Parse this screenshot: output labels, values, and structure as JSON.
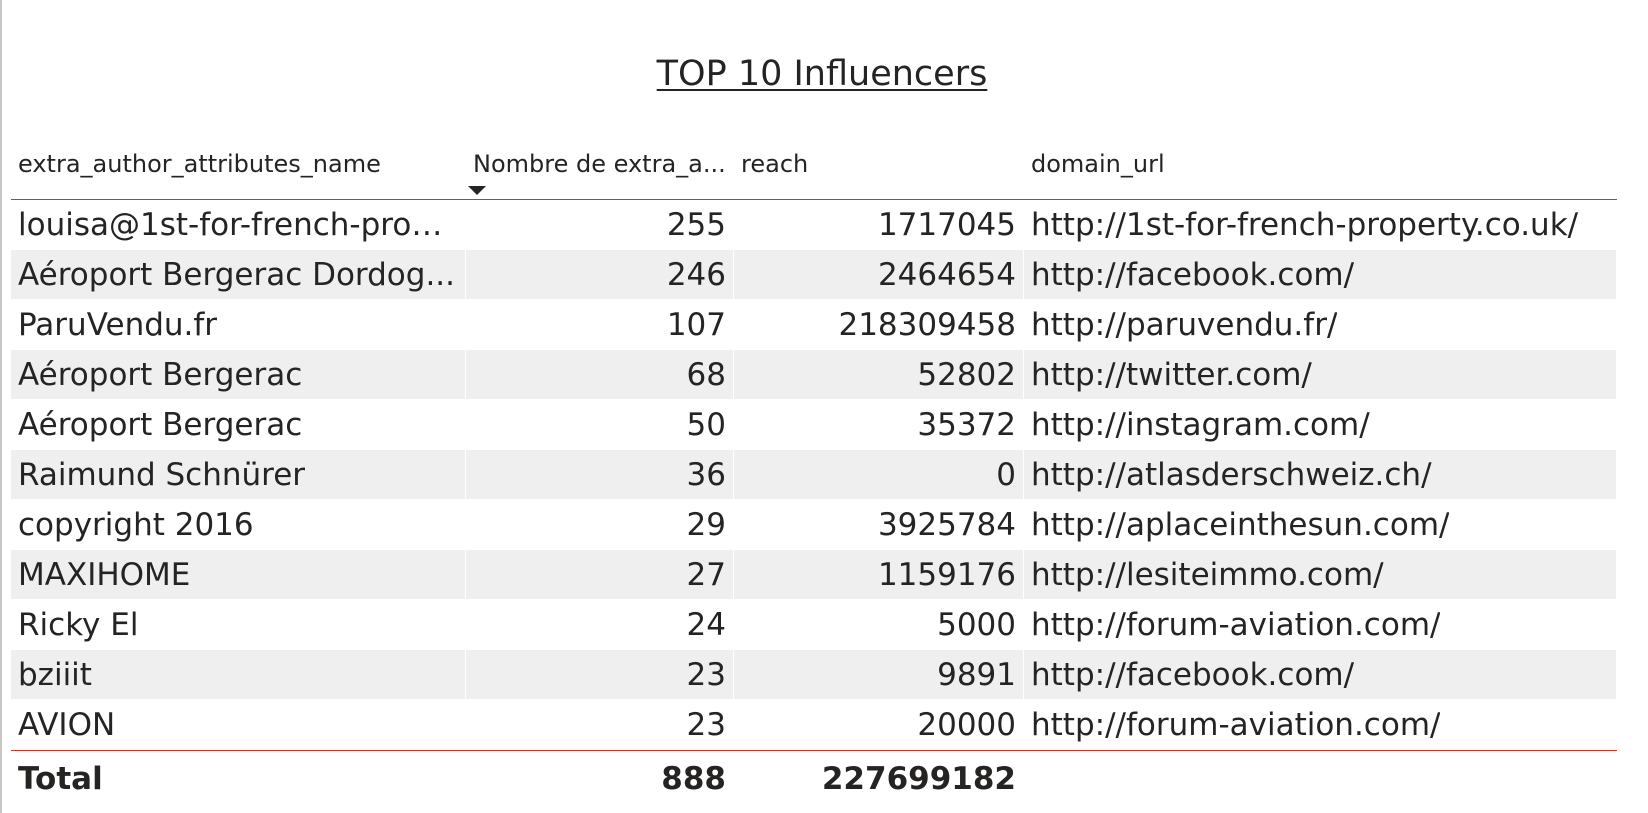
{
  "title": "TOP 10 Influencers",
  "columns": {
    "name": "extra_author_attributes_name",
    "count": "Nombre de extra_a...",
    "reach": "reach",
    "domain": "domain_url"
  },
  "rows": [
    {
      "name": "louisa@1st-for-french-prop...",
      "count": "255",
      "reach": "1717045",
      "domain": "http://1st-for-french-property.co.uk/"
    },
    {
      "name": "Aéroport Bergerac Dordog...",
      "count": "246",
      "reach": "2464654",
      "domain": "http://facebook.com/"
    },
    {
      "name": "ParuVendu.fr",
      "count": "107",
      "reach": "218309458",
      "domain": "http://paruvendu.fr/"
    },
    {
      "name": "Aéroport Bergerac",
      "count": "68",
      "reach": "52802",
      "domain": "http://twitter.com/"
    },
    {
      "name": "Aéroport Bergerac",
      "count": "50",
      "reach": "35372",
      "domain": "http://instagram.com/"
    },
    {
      "name": "Raimund Schnürer",
      "count": "36",
      "reach": "0",
      "domain": "http://atlasderschweiz.ch/"
    },
    {
      "name": "copyright 2016",
      "count": "29",
      "reach": "3925784",
      "domain": "http://aplaceinthesun.com/"
    },
    {
      "name": "MAXIHOME",
      "count": "27",
      "reach": "1159176",
      "domain": "http://lesiteimmo.com/"
    },
    {
      "name": "Ricky El",
      "count": "24",
      "reach": "5000",
      "domain": "http://forum-aviation.com/"
    },
    {
      "name": "bziiit",
      "count": "23",
      "reach": "9891",
      "domain": "http://facebook.com/"
    },
    {
      "name": "AVION",
      "count": "23",
      "reach": "20000",
      "domain": "http://forum-aviation.com/"
    }
  ],
  "total": {
    "label": "Total",
    "count": "888",
    "reach": "227699182"
  },
  "sort_icon": "sort-descending-icon",
  "colors": {
    "header_border": "#c0392b",
    "alt_row": "#efefef",
    "text": "#252423"
  }
}
